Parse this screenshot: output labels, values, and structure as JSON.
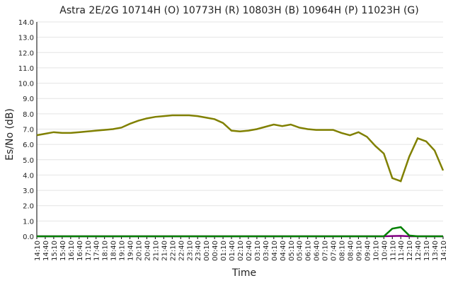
{
  "chart_data": {
    "type": "line",
    "title": "Astra 2E/2G 10714H (O) 10773H (R) 10803H (B) 10964H (P) 11023H (G)",
    "x_label": "Time",
    "y_label": "Es/No (dB)",
    "categories": [
      "14:10",
      "14:40",
      "15:10",
      "15:40",
      "16:10",
      "16:40",
      "17:10",
      "17:40",
      "18:10",
      "18:40",
      "19:10",
      "19:40",
      "20:10",
      "20:40",
      "21:10",
      "21:40",
      "22:10",
      "22:40",
      "23:10",
      "23:40",
      "00:10",
      "00:40",
      "01:10",
      "01:40",
      "02:10",
      "02:40",
      "03:10",
      "03:40",
      "04:10",
      "04:40",
      "05:10",
      "05:40",
      "06:10",
      "06:40",
      "07:10",
      "07:40",
      "08:10",
      "08:40",
      "09:10",
      "09:40",
      "10:10",
      "10:40",
      "11:10",
      "11:40",
      "12:10",
      "12:40",
      "13:10",
      "13:40",
      "14:10"
    ],
    "series": [
      {
        "color": "#808000",
        "values": [
          6.6,
          6.7,
          6.8,
          6.75,
          6.75,
          6.8,
          6.85,
          6.9,
          6.95,
          7.0,
          7.1,
          7.35,
          7.55,
          7.7,
          7.8,
          7.85,
          7.9,
          7.9,
          7.9,
          7.85,
          7.75,
          7.65,
          7.4,
          6.9,
          6.85,
          6.9,
          7.0,
          7.15,
          7.3,
          7.2,
          7.3,
          7.1,
          7.0,
          6.95,
          6.95,
          6.95,
          6.75,
          6.6,
          6.8,
          6.5,
          5.9,
          5.4,
          3.8,
          3.6,
          5.2,
          6.4,
          6.2,
          5.6,
          4.3
        ]
      },
      {
        "color": "#800080",
        "values": [
          0,
          0,
          0,
          0,
          0,
          0,
          0,
          0,
          0,
          0,
          0,
          0,
          0,
          0,
          0,
          0,
          0,
          0,
          0,
          0,
          0,
          0,
          0,
          0,
          0,
          0,
          0,
          0,
          0,
          0,
          0,
          0,
          0,
          0,
          0,
          0,
          0,
          0,
          0,
          0,
          0,
          0,
          0.02,
          0.03,
          0,
          0,
          0,
          0,
          0
        ]
      },
      {
        "color": "#008000",
        "values": [
          0,
          0,
          0,
          0,
          0,
          0,
          0,
          0,
          0,
          0,
          0,
          0,
          0,
          0,
          0,
          0,
          0,
          0,
          0,
          0,
          0,
          0,
          0,
          0,
          0,
          0,
          0,
          0,
          0,
          0,
          0,
          0,
          0,
          0,
          0,
          0,
          0,
          0,
          0,
          0,
          0,
          0,
          0.5,
          0.6,
          0.05,
          0,
          0,
          0,
          0
        ]
      }
    ],
    "ylim": [
      0,
      14
    ],
    "yticks": [
      {
        "value": 0,
        "label": "0.0"
      },
      {
        "value": 1,
        "label": "1.0"
      },
      {
        "value": 2,
        "label": "2.0"
      },
      {
        "value": 3,
        "label": "3.0"
      },
      {
        "value": 4,
        "label": "4.0"
      },
      {
        "value": 5,
        "label": "5.0"
      },
      {
        "value": 6,
        "label": "6.0"
      },
      {
        "value": 7,
        "label": "7.0"
      },
      {
        "value": 8,
        "label": "8.0"
      },
      {
        "value": 9,
        "label": "9.0"
      },
      {
        "value": 10,
        "label": "10.0"
      },
      {
        "value": 11,
        "label": "11.0"
      },
      {
        "value": 12,
        "label": "12.0"
      },
      {
        "value": 13,
        "label": "13.0"
      },
      {
        "value": 14,
        "label": "14.0"
      }
    ],
    "grid": true
  }
}
